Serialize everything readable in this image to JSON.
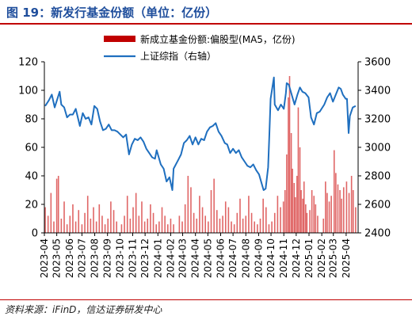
{
  "figure": {
    "title": "图 19：新发行基金份额（单位：亿份）",
    "source": "资料来源：iFinD，信达证券研发中心"
  },
  "colors": {
    "title": "#1f4e9c",
    "rule": "#c00000",
    "bars": "#e06666",
    "bars_legend": "#c00000",
    "line": "#1f6fbf",
    "axis": "#000000"
  },
  "chart_data": {
    "type": "bar+line",
    "title": "",
    "x_tick_labels": [
      "2023-04",
      "2023-05",
      "2023-06",
      "2023-07",
      "2023-08",
      "2023-09",
      "2023-10",
      "2023-11",
      "2023-12",
      "2024-01",
      "2024-02",
      "2024-03",
      "2024-04",
      "2024-05",
      "2024-06",
      "2024-07",
      "2024-08",
      "2024-09",
      "2024-10",
      "2024-11",
      "2024-12",
      "2025-01",
      "2025-02",
      "2025-03",
      "2025-04"
    ],
    "x_range": [
      "2023-04-01",
      "2025-04-30"
    ],
    "y_left": {
      "min": 0,
      "max": 120,
      "ticks": [
        0,
        20,
        40,
        60,
        80,
        100,
        120
      ]
    },
    "y_right": {
      "min": 2400,
      "max": 3600,
      "ticks": [
        2400,
        2600,
        2800,
        3000,
        3200,
        3400,
        3600
      ]
    },
    "legend_position": "top-center",
    "grid": false,
    "series": [
      {
        "name": "新成立基金份额:偏股型(MA5，亿份)",
        "type": "bar",
        "axis": "left",
        "points": [
          [
            "2023-04-03",
            18
          ],
          [
            "2023-04-10",
            12
          ],
          [
            "2023-04-17",
            28
          ],
          [
            "2023-04-24",
            8
          ],
          [
            "2023-05-01",
            38
          ],
          [
            "2023-05-05",
            40
          ],
          [
            "2023-05-12",
            10
          ],
          [
            "2023-05-19",
            22
          ],
          [
            "2023-05-26",
            6
          ],
          [
            "2023-06-02",
            12
          ],
          [
            "2023-06-09",
            20
          ],
          [
            "2023-06-16",
            8
          ],
          [
            "2023-06-23",
            16
          ],
          [
            "2023-07-01",
            6
          ],
          [
            "2023-07-08",
            14
          ],
          [
            "2023-07-15",
            26
          ],
          [
            "2023-07-22",
            10
          ],
          [
            "2023-07-29",
            18
          ],
          [
            "2023-08-05",
            8
          ],
          [
            "2023-08-12",
            20
          ],
          [
            "2023-08-19",
            12
          ],
          [
            "2023-08-26",
            6
          ],
          [
            "2023-09-02",
            10
          ],
          [
            "2023-09-09",
            22
          ],
          [
            "2023-09-16",
            16
          ],
          [
            "2023-09-23",
            8
          ],
          [
            "2023-10-05",
            6
          ],
          [
            "2023-10-12",
            12
          ],
          [
            "2023-10-19",
            26
          ],
          [
            "2023-10-26",
            10
          ],
          [
            "2023-11-02",
            18
          ],
          [
            "2023-11-09",
            28
          ],
          [
            "2023-11-16",
            12
          ],
          [
            "2023-11-23",
            22
          ],
          [
            "2023-11-30",
            8
          ],
          [
            "2023-12-07",
            10
          ],
          [
            "2023-12-14",
            20
          ],
          [
            "2023-12-21",
            14
          ],
          [
            "2023-12-28",
            6
          ],
          [
            "2024-01-04",
            8
          ],
          [
            "2024-01-11",
            18
          ],
          [
            "2024-01-18",
            12
          ],
          [
            "2024-01-25",
            6
          ],
          [
            "2024-02-01",
            10
          ],
          [
            "2024-02-08",
            6
          ],
          [
            "2024-02-22",
            12
          ],
          [
            "2024-02-29",
            8
          ],
          [
            "2024-03-07",
            20
          ],
          [
            "2024-03-14",
            40
          ],
          [
            "2024-03-21",
            32
          ],
          [
            "2024-03-28",
            14
          ],
          [
            "2024-04-04",
            10
          ],
          [
            "2024-04-11",
            26
          ],
          [
            "2024-04-18",
            18
          ],
          [
            "2024-04-25",
            12
          ],
          [
            "2024-05-02",
            8
          ],
          [
            "2024-05-09",
            30
          ],
          [
            "2024-05-16",
            38
          ],
          [
            "2024-05-23",
            16
          ],
          [
            "2024-05-30",
            10
          ],
          [
            "2024-06-06",
            12
          ],
          [
            "2024-06-13",
            22
          ],
          [
            "2024-06-20",
            18
          ],
          [
            "2024-06-27",
            8
          ],
          [
            "2024-07-04",
            6
          ],
          [
            "2024-07-11",
            14
          ],
          [
            "2024-07-18",
            24
          ],
          [
            "2024-07-25",
            10
          ],
          [
            "2024-08-01",
            12
          ],
          [
            "2024-08-08",
            26
          ],
          [
            "2024-08-15",
            14
          ],
          [
            "2024-08-22",
            8
          ],
          [
            "2024-08-29",
            6
          ],
          [
            "2024-09-05",
            10
          ],
          [
            "2024-09-12",
            24
          ],
          [
            "2024-09-19",
            18
          ],
          [
            "2024-09-26",
            6
          ],
          [
            "2024-10-03",
            8
          ],
          [
            "2024-10-10",
            14
          ],
          [
            "2024-10-17",
            26
          ],
          [
            "2024-10-24",
            18
          ],
          [
            "2024-10-31",
            22
          ],
          [
            "2024-11-04",
            30
          ],
          [
            "2024-11-08",
            55
          ],
          [
            "2024-11-12",
            95
          ],
          [
            "2024-11-15",
            110
          ],
          [
            "2024-11-19",
            70
          ],
          [
            "2024-11-22",
            45
          ],
          [
            "2024-11-26",
            35
          ],
          [
            "2024-11-29",
            25
          ],
          [
            "2024-12-03",
            40
          ],
          [
            "2024-12-06",
            88
          ],
          [
            "2024-12-10",
            60
          ],
          [
            "2024-12-13",
            30
          ],
          [
            "2024-12-17",
            24
          ],
          [
            "2024-12-20",
            36
          ],
          [
            "2024-12-24",
            20
          ],
          [
            "2024-12-27",
            14
          ],
          [
            "2025-01-03",
            16
          ],
          [
            "2025-01-08",
            30
          ],
          [
            "2025-01-13",
            26
          ],
          [
            "2025-01-17",
            20
          ],
          [
            "2025-01-22",
            12
          ],
          [
            "2025-02-05",
            10
          ],
          [
            "2025-02-10",
            36
          ],
          [
            "2025-02-14",
            28
          ],
          [
            "2025-02-19",
            22
          ],
          [
            "2025-02-24",
            26
          ],
          [
            "2025-03-03",
            58
          ],
          [
            "2025-03-07",
            42
          ],
          [
            "2025-03-12",
            34
          ],
          [
            "2025-03-17",
            30
          ],
          [
            "2025-03-21",
            24
          ],
          [
            "2025-03-26",
            32
          ],
          [
            "2025-04-02",
            36
          ],
          [
            "2025-04-08",
            28
          ],
          [
            "2025-04-14",
            40
          ],
          [
            "2025-04-18",
            30
          ],
          [
            "2025-04-24",
            18
          ]
        ]
      },
      {
        "name": "上证综指（右轴）",
        "type": "line",
        "axis": "right",
        "points": [
          [
            "2023-04-03",
            3290
          ],
          [
            "2023-04-12",
            3330
          ],
          [
            "2023-04-19",
            3370
          ],
          [
            "2023-04-26",
            3280
          ],
          [
            "2023-05-08",
            3390
          ],
          [
            "2023-05-12",
            3300
          ],
          [
            "2023-05-19",
            3280
          ],
          [
            "2023-05-26",
            3210
          ],
          [
            "2023-06-02",
            3230
          ],
          [
            "2023-06-09",
            3230
          ],
          [
            "2023-06-16",
            3270
          ],
          [
            "2023-06-26",
            3150
          ],
          [
            "2023-07-03",
            3240
          ],
          [
            "2023-07-10",
            3200
          ],
          [
            "2023-07-17",
            3210
          ],
          [
            "2023-07-24",
            3160
          ],
          [
            "2023-07-31",
            3290
          ],
          [
            "2023-08-07",
            3270
          ],
          [
            "2023-08-14",
            3180
          ],
          [
            "2023-08-21",
            3120
          ],
          [
            "2023-08-28",
            3130
          ],
          [
            "2023-09-04",
            3160
          ],
          [
            "2023-09-11",
            3120
          ],
          [
            "2023-09-18",
            3120
          ],
          [
            "2023-09-25",
            3110
          ],
          [
            "2023-10-09",
            3070
          ],
          [
            "2023-10-16",
            3090
          ],
          [
            "2023-10-23",
            2950
          ],
          [
            "2023-10-30",
            3020
          ],
          [
            "2023-11-06",
            3060
          ],
          [
            "2023-11-13",
            3050
          ],
          [
            "2023-11-20",
            3070
          ],
          [
            "2023-11-27",
            3040
          ],
          [
            "2023-12-04",
            2990
          ],
          [
            "2023-12-11",
            2960
          ],
          [
            "2023-12-18",
            2930
          ],
          [
            "2023-12-25",
            2920
          ],
          [
            "2023-12-29",
            2980
          ],
          [
            "2024-01-08",
            2880
          ],
          [
            "2024-01-15",
            2850
          ],
          [
            "2024-01-22",
            2760
          ],
          [
            "2024-01-29",
            2790
          ],
          [
            "2024-02-05",
            2700
          ],
          [
            "2024-02-08",
            2850
          ],
          [
            "2024-02-19",
            2910
          ],
          [
            "2024-02-26",
            2950
          ],
          [
            "2024-03-04",
            3030
          ],
          [
            "2024-03-11",
            3050
          ],
          [
            "2024-03-18",
            3080
          ],
          [
            "2024-03-25",
            3020
          ],
          [
            "2024-04-01",
            3070
          ],
          [
            "2024-04-08",
            3020
          ],
          [
            "2024-04-15",
            3060
          ],
          [
            "2024-04-22",
            3050
          ],
          [
            "2024-04-29",
            3110
          ],
          [
            "2024-05-06",
            3140
          ],
          [
            "2024-05-13",
            3150
          ],
          [
            "2024-05-20",
            3170
          ],
          [
            "2024-05-27",
            3110
          ],
          [
            "2024-06-03",
            3080
          ],
          [
            "2024-06-11",
            3030
          ],
          [
            "2024-06-17",
            3020
          ],
          [
            "2024-06-24",
            2960
          ],
          [
            "2024-07-01",
            2990
          ],
          [
            "2024-07-08",
            2960
          ],
          [
            "2024-07-15",
            2980
          ],
          [
            "2024-07-22",
            2930
          ],
          [
            "2024-07-29",
            2900
          ],
          [
            "2024-08-05",
            2870
          ],
          [
            "2024-08-12",
            2860
          ],
          [
            "2024-08-19",
            2880
          ],
          [
            "2024-08-26",
            2840
          ],
          [
            "2024-09-02",
            2810
          ],
          [
            "2024-09-09",
            2740
          ],
          [
            "2024-09-13",
            2700
          ],
          [
            "2024-09-18",
            2710
          ],
          [
            "2024-09-24",
            2860
          ],
          [
            "2024-09-27",
            3090
          ],
          [
            "2024-09-30",
            3340
          ],
          [
            "2024-10-08",
            3490
          ],
          [
            "2024-10-10",
            3300
          ],
          [
            "2024-10-14",
            3280
          ],
          [
            "2024-10-18",
            3260
          ],
          [
            "2024-10-25",
            3300
          ],
          [
            "2024-11-01",
            3270
          ],
          [
            "2024-11-06",
            3380
          ],
          [
            "2024-11-08",
            3450
          ],
          [
            "2024-11-13",
            3440
          ],
          [
            "2024-11-20",
            3370
          ],
          [
            "2024-11-27",
            3300
          ],
          [
            "2024-12-04",
            3370
          ],
          [
            "2024-12-10",
            3420
          ],
          [
            "2024-12-16",
            3390
          ],
          [
            "2024-12-23",
            3380
          ],
          [
            "2024-12-31",
            3350
          ],
          [
            "2025-01-06",
            3210
          ],
          [
            "2025-01-13",
            3160
          ],
          [
            "2025-01-20",
            3240
          ],
          [
            "2025-01-27",
            3250
          ],
          [
            "2025-02-07",
            3300
          ],
          [
            "2025-02-14",
            3350
          ],
          [
            "2025-02-21",
            3380
          ],
          [
            "2025-02-28",
            3320
          ],
          [
            "2025-03-07",
            3370
          ],
          [
            "2025-03-14",
            3420
          ],
          [
            "2025-03-19",
            3410
          ],
          [
            "2025-03-24",
            3370
          ],
          [
            "2025-03-31",
            3340
          ],
          [
            "2025-04-03",
            3340
          ],
          [
            "2025-04-07",
            3100
          ],
          [
            "2025-04-10",
            3220
          ],
          [
            "2025-04-17",
            3280
          ],
          [
            "2025-04-24",
            3290
          ]
        ]
      }
    ]
  }
}
